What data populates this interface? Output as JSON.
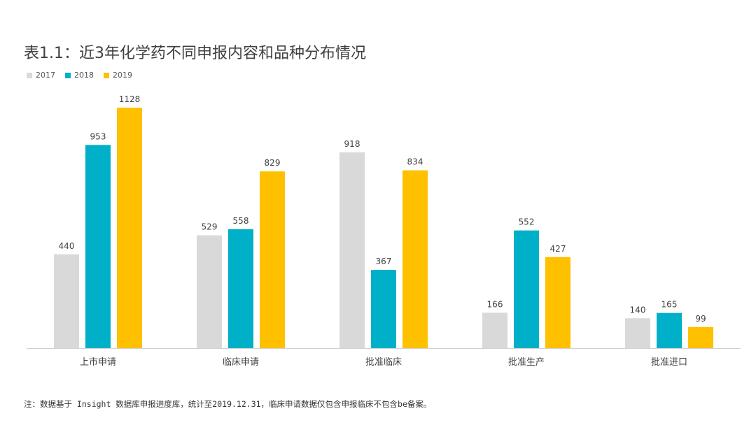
{
  "title": "表1.1：近3年化学药不同申报内容和品种分布情况",
  "footnote": "注：数据基于 Insight 数据库申报进度库，统计至2019.12.31，临床申请数据仅包含申报临床不包含be备案。",
  "colors": {
    "s2017": "#d9d9d9",
    "s2018": "#00b0c8",
    "s2019": "#ffc000",
    "axis": "#d0d0d0",
    "label": "#404040"
  },
  "chart_data": {
    "type": "bar",
    "title": "表1.1：近3年化学药不同申报内容和品种分布情况",
    "categories": [
      "上市申请",
      "临床申请",
      "批准临床",
      "批准生产",
      "批准进口"
    ],
    "series": [
      {
        "name": "2017",
        "values": [
          440,
          529,
          918,
          166,
          140
        ]
      },
      {
        "name": "2018",
        "values": [
          953,
          558,
          367,
          552,
          165
        ]
      },
      {
        "name": "2019",
        "values": [
          1128,
          829,
          834,
          427,
          99
        ]
      }
    ],
    "ylim": [
      0,
      1128
    ],
    "grid": false,
    "legend": "top-left",
    "data_labels": true
  }
}
